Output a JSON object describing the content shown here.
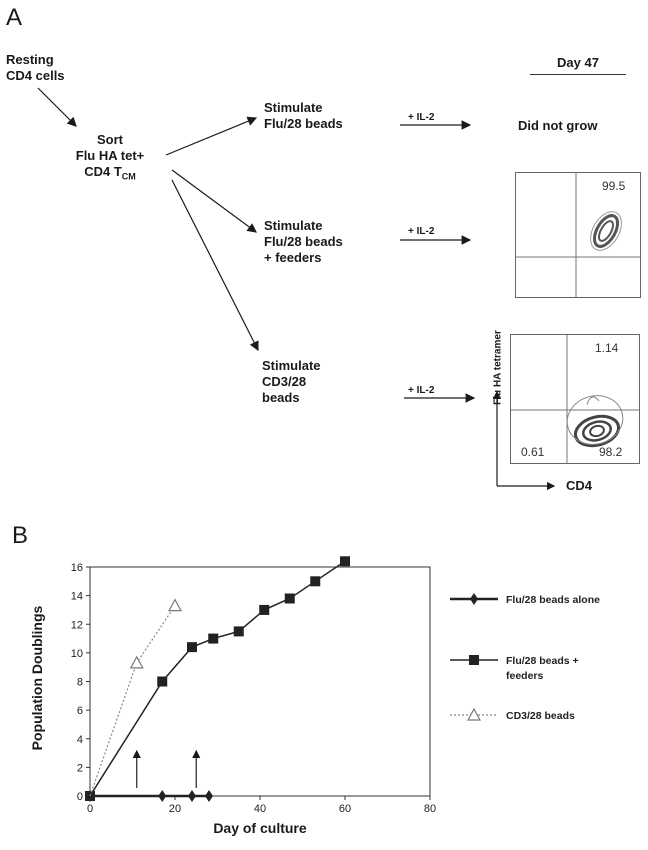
{
  "panel_a": {
    "letter": "A",
    "resting_label": [
      "Resting",
      "CD4 cells"
    ],
    "sort_label": [
      "Sort",
      "Flu HA tet+",
      "CD4 T"
    ],
    "sort_subscript": "CM",
    "day_header": "Day 47",
    "branches": [
      {
        "label": [
          "Stimulate",
          "Flu/28 beads"
        ],
        "il2": "+ IL-2",
        "result": "Did not grow"
      },
      {
        "label": [
          "Stimulate",
          "Flu/28 beads",
          "+ feeders"
        ],
        "il2": "+ IL-2"
      },
      {
        "label": [
          "Stimulate",
          "CD3/28",
          "beads"
        ],
        "il2": "+ IL-2"
      }
    ],
    "facs1": {
      "q_upper_right": "99.5"
    },
    "facs2": {
      "q_upper_right": "1.14",
      "q_lower_left": "0.61",
      "q_lower_right": "98.2",
      "y_axis_label": "Flu HA tetramer",
      "x_axis_label": "CD4"
    }
  },
  "panel_b": {
    "letter": "B"
  },
  "chart_data": {
    "type": "line",
    "title": "",
    "xlabel": "Day of culture",
    "ylabel": "Population Doublings",
    "xlim": [
      0,
      80
    ],
    "ylim": [
      0,
      16
    ],
    "xticks": [
      0,
      20,
      40,
      60,
      80
    ],
    "yticks": [
      0,
      2,
      4,
      6,
      8,
      10,
      12,
      14,
      16
    ],
    "grid": false,
    "legend_position": "right",
    "series": [
      {
        "name": "Flu/28 beads alone",
        "marker": "diamond",
        "style": "solid",
        "x": [
          0,
          17,
          24,
          28
        ],
        "y": [
          0,
          0,
          0,
          0
        ]
      },
      {
        "name": "Flu/28 beads + feeders",
        "marker": "square",
        "style": "solid",
        "x": [
          0,
          17,
          24,
          29,
          35,
          41,
          47,
          53,
          60
        ],
        "y": [
          0,
          8,
          10.4,
          11,
          11.5,
          13,
          13.8,
          15,
          16.4
        ]
      },
      {
        "name": "CD3/28 beads",
        "marker": "triangle",
        "style": "dotted",
        "x": [
          0,
          11,
          20
        ],
        "y": [
          0,
          9.3,
          13.3
        ]
      }
    ],
    "annotations": [
      {
        "type": "arrow-up",
        "x": 11
      },
      {
        "type": "arrow-up",
        "x": 25
      }
    ]
  }
}
